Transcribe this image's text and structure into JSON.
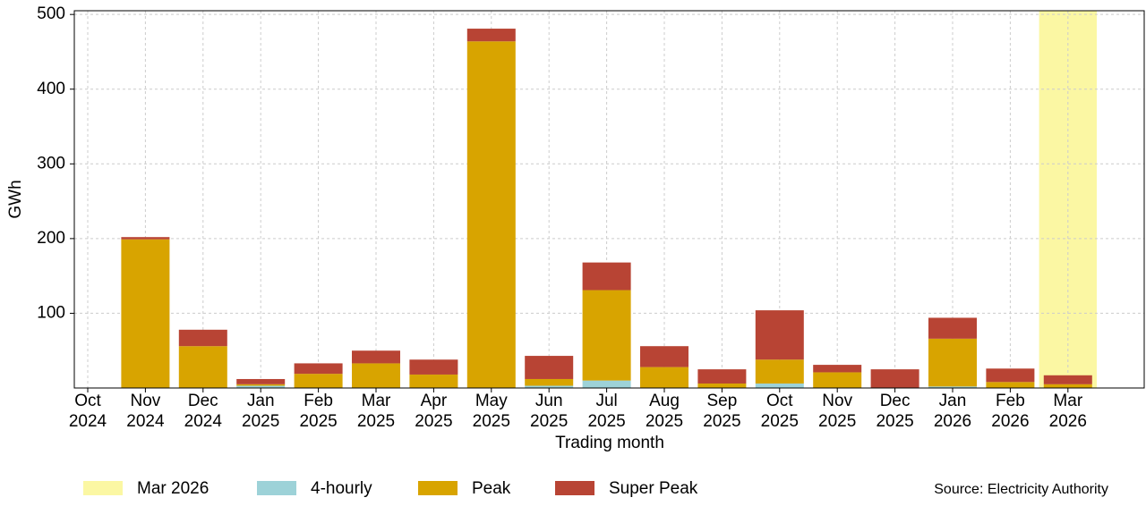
{
  "chart_data": {
    "type": "stacked-bar",
    "x_label": "Trading month",
    "y_label": "GWh",
    "source": "Source: Electricity Authority",
    "categories": [
      "Oct 2024",
      "Nov 2024",
      "Dec 2024",
      "Jan 2025",
      "Feb 2025",
      "Mar 2025",
      "Apr 2025",
      "May 2025",
      "Jun 2025",
      "Jul 2025",
      "Aug 2025",
      "Sep 2025",
      "Oct 2025",
      "Nov 2025",
      "Dec 2025",
      "Jan 2026",
      "Feb 2026",
      "Mar 2026"
    ],
    "highlight": {
      "name": "Mar 2026",
      "color": "#fbf7a3"
    },
    "series": [
      {
        "name": "4-hourly",
        "color": "#9dd2d8",
        "values": [
          0,
          0,
          0,
          3,
          0,
          0,
          0,
          0,
          3,
          10,
          0,
          0,
          6,
          0,
          0,
          2,
          0,
          0
        ]
      },
      {
        "name": "Peak",
        "color": "#d8a400",
        "values": [
          0,
          199,
          56,
          2,
          19,
          33,
          18,
          464,
          9,
          121,
          28,
          6,
          32,
          21,
          0,
          64,
          8,
          5
        ]
      },
      {
        "name": "Super Peak",
        "color": "#b84434",
        "values": [
          0,
          3,
          22,
          7,
          14,
          17,
          20,
          17,
          31,
          37,
          28,
          19,
          66,
          10,
          25,
          28,
          18,
          12
        ]
      }
    ],
    "ylim": [
      0,
      505
    ],
    "yticks": [
      100,
      200,
      300,
      400,
      500
    ],
    "grid": true
  }
}
